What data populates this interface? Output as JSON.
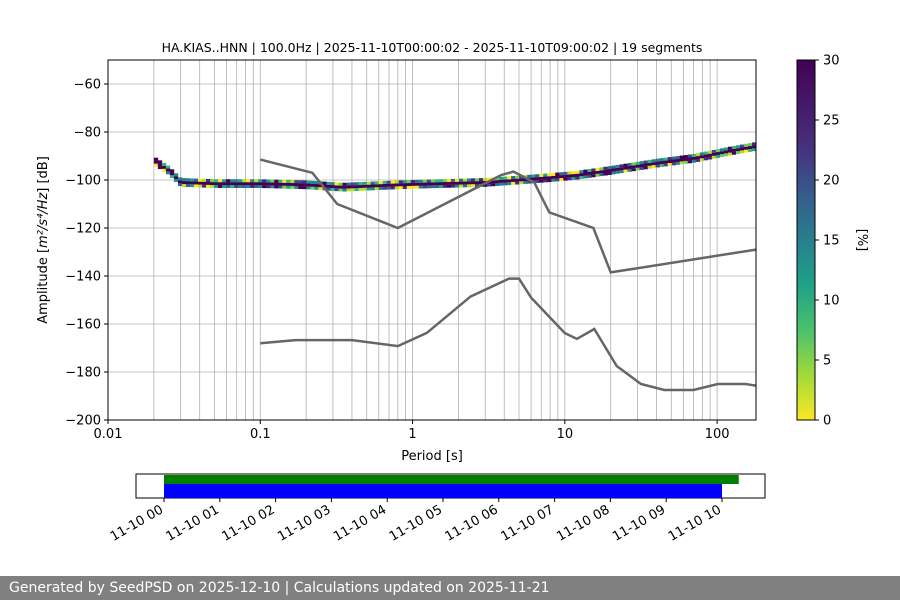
{
  "chart_data": {
    "type": "heatmap",
    "title": "HA.KIAS..HNN | 100.0Hz | 2025-11-10T00:00:02 - 2025-11-10T09:00:02 | 19 segments",
    "xlabel": "Period [s]",
    "ylabel_prefix": "Amplitude [",
    "ylabel_math": "m²/s⁴/Hz",
    "ylabel_suffix": "] [dB]",
    "x_scale": "log",
    "xlim": [
      0.01,
      180
    ],
    "ylim": [
      -200,
      -50
    ],
    "x_ticks": [
      0.01,
      0.1,
      1,
      10,
      100
    ],
    "x_tick_labels": [
      "0.01",
      "0.1",
      "1",
      "10",
      "100"
    ],
    "y_ticks": [
      -200,
      -180,
      -160,
      -140,
      -120,
      -100,
      -80,
      -60
    ],
    "y_tick_labels": [
      "−200",
      "−180",
      "−160",
      "−140",
      "−120",
      "−100",
      "−80",
      "−60"
    ],
    "grid": "vertical at log minor/major ticks, horizontal at major ticks",
    "psd_band": [
      {
        "period": 0.02,
        "db": -92
      },
      {
        "period": 0.025,
        "db": -96
      },
      {
        "period": 0.03,
        "db": -101
      },
      {
        "period": 0.05,
        "db": -101.5
      },
      {
        "period": 0.1,
        "db": -101.5
      },
      {
        "period": 0.2,
        "db": -102
      },
      {
        "period": 0.35,
        "db": -103
      },
      {
        "period": 0.8,
        "db": -102
      },
      {
        "period": 1.5,
        "db": -101.5
      },
      {
        "period": 3,
        "db": -101
      },
      {
        "period": 5,
        "db": -100
      },
      {
        "period": 8,
        "db": -99
      },
      {
        "period": 12,
        "db": -98
      },
      {
        "period": 20,
        "db": -96
      },
      {
        "period": 40,
        "db": -93
      },
      {
        "period": 70,
        "db": -91
      },
      {
        "period": 120,
        "db": -88
      },
      {
        "period": 180,
        "db": -86
      }
    ],
    "nhnm": [
      {
        "period": 0.1,
        "db": -91.5
      },
      {
        "period": 0.22,
        "db": -97
      },
      {
        "period": 0.32,
        "db": -110
      },
      {
        "period": 0.8,
        "db": -120
      },
      {
        "period": 3.8,
        "db": -98
      },
      {
        "period": 4.6,
        "db": -96.5
      },
      {
        "period": 6.3,
        "db": -101
      },
      {
        "period": 7.9,
        "db": -113.5
      },
      {
        "period": 15.4,
        "db": -120
      },
      {
        "period": 20,
        "db": -138.5
      },
      {
        "period": 180,
        "db": -129
      }
    ],
    "nlnm": [
      {
        "period": 0.1,
        "db": -168
      },
      {
        "period": 0.17,
        "db": -166.7
      },
      {
        "period": 0.4,
        "db": -166.7
      },
      {
        "period": 0.8,
        "db": -169.2
      },
      {
        "period": 1.24,
        "db": -163.7
      },
      {
        "period": 2.4,
        "db": -148.6
      },
      {
        "period": 4.3,
        "db": -141.1
      },
      {
        "period": 5,
        "db": -141.1
      },
      {
        "period": 6,
        "db": -149
      },
      {
        "period": 10,
        "db": -163.8
      },
      {
        "period": 12,
        "db": -166.2
      },
      {
        "period": 15.6,
        "db": -162.1
      },
      {
        "period": 21.9,
        "db": -177.5
      },
      {
        "period": 31.6,
        "db": -185
      },
      {
        "period": 45,
        "db": -187.5
      },
      {
        "period": 70,
        "db": -187.5
      },
      {
        "period": 101,
        "db": -185
      },
      {
        "period": 154,
        "db": -185
      },
      {
        "period": 180,
        "db": -185.7
      }
    ],
    "colorbar": {
      "label": "[%]",
      "range": [
        0,
        30
      ],
      "ticks": [
        0,
        5,
        10,
        15,
        20,
        25,
        30
      ],
      "colormap": "viridis_r"
    },
    "coverage": {
      "start_hour": 0,
      "end_hour": 10.6,
      "tick_hours": [
        0,
        1,
        2,
        3,
        4,
        5,
        6,
        7,
        8,
        9,
        10
      ],
      "tick_labels": [
        "11-10 00",
        "11-10 01",
        "11-10 02",
        "11-10 03",
        "11-10 04",
        "11-10 05",
        "11-10 06",
        "11-10 07",
        "11-10 08",
        "11-10 09",
        "11-10 10"
      ],
      "bars": [
        {
          "color": "#008000",
          "start_hour": 0,
          "end_hour": 10.3
        },
        {
          "color": "#0000ff",
          "start_hour": 0,
          "end_hour": 10.0
        }
      ]
    },
    "model_line_color": "#666666"
  },
  "footer": "Generated by SeedPSD on 2025-12-10 | Calculations updated on 2025-11-21"
}
